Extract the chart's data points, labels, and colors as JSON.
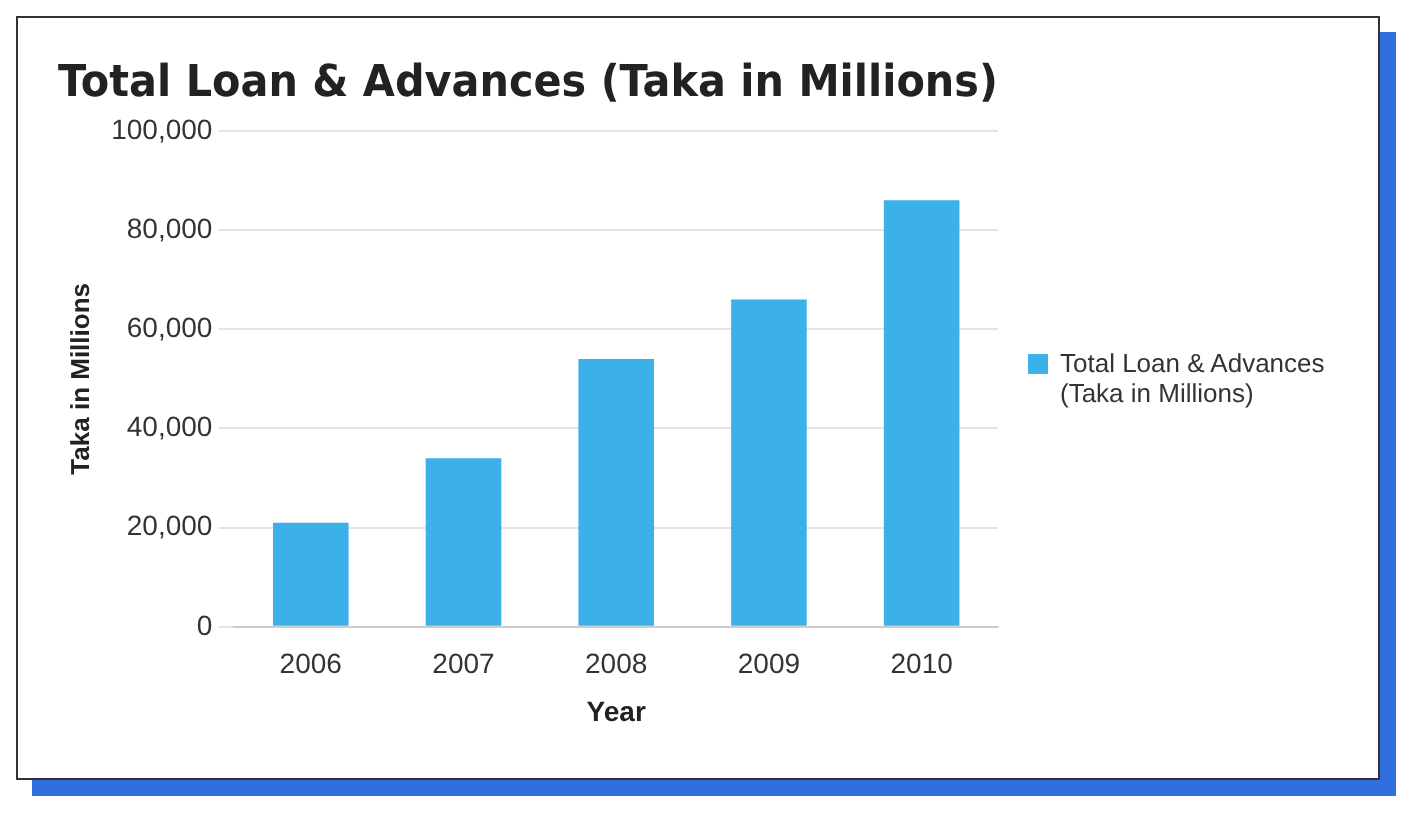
{
  "chart_data": {
    "type": "bar",
    "title": "Total Loan & Advances (Taka in Millions)",
    "xlabel": "Year",
    "ylabel": "Taka in Millions",
    "categories": [
      "2006",
      "2007",
      "2008",
      "2009",
      "2010"
    ],
    "series": [
      {
        "name": "Total Loan & Advances (Taka in Millions)",
        "color": "#3cb0e8",
        "values": [
          21000,
          34000,
          54000,
          66000,
          86000
        ]
      }
    ],
    "ylim": [
      0,
      100000
    ],
    "yticks": [
      {
        "value": 0,
        "label": "0"
      },
      {
        "value": 20000,
        "label": "20,000"
      },
      {
        "value": 40000,
        "label": "40,000"
      },
      {
        "value": 60000,
        "label": "60,000"
      },
      {
        "value": 80000,
        "label": "80,000"
      },
      {
        "value": 100000,
        "label": "100,000"
      }
    ],
    "grid": "y",
    "legend": "right"
  }
}
